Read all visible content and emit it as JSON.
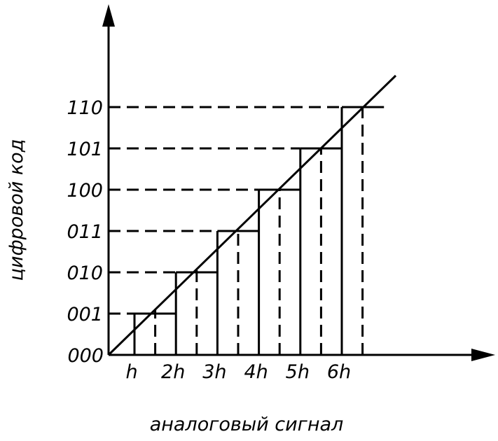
{
  "y_axis": {
    "label": "цифровой код",
    "ticks": [
      "000",
      "001",
      "010",
      "011",
      "100",
      "101",
      "110"
    ]
  },
  "x_axis": {
    "label": "аналоговый сигнал",
    "ticks": [
      "h",
      "2h",
      "3h",
      "4h",
      "5h",
      "6h"
    ]
  }
}
